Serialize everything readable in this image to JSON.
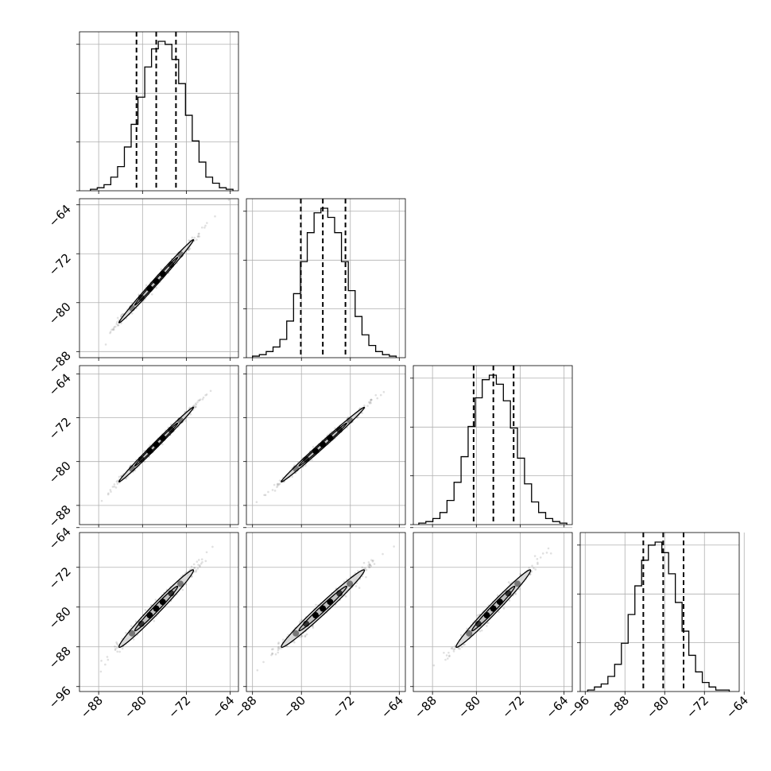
{
  "chart_data": {
    "type": "corner",
    "title": "",
    "parameters": 4,
    "axes": {
      "x_tick_labels": [
        [
          "−88",
          "−80",
          "−72",
          "−64"
        ],
        [
          "−88",
          "−80",
          "−72",
          "−64"
        ],
        [
          "−88",
          "−80",
          "−72",
          "−64"
        ],
        [
          "−96",
          "−88",
          "−80",
          "−72",
          "−64"
        ]
      ],
      "y_tick_labels": [
        [],
        [
          "−64",
          "−72",
          "−80",
          "−88"
        ],
        [
          "−64",
          "−72",
          "−80",
          "−88"
        ],
        [
          "−64",
          "−72",
          "−80",
          "−88",
          "−96"
        ]
      ],
      "ranges": [
        [
          -91.5,
          -62.5
        ],
        [
          -89,
          -63
        ],
        [
          -91.5,
          -62.5
        ],
        [
          -97,
          -65
        ]
      ],
      "grid": true
    },
    "marginals": [
      {
        "param": 0,
        "bin_edges_range": [
          -89.5,
          -63.5
        ],
        "counts": [
          1,
          2,
          4,
          9,
          16,
          29,
          44,
          62,
          82,
          94,
          99,
          97,
          87,
          71,
          50,
          33,
          19,
          9,
          5,
          2,
          1
        ],
        "quantiles": [
          -81.1,
          -77.5,
          -73.9
        ]
      },
      {
        "param": 1,
        "bin_edges_range": [
          -88,
          -64.5
        ],
        "counts": [
          1,
          2,
          4,
          7,
          12,
          24,
          42,
          63,
          82,
          95,
          98,
          92,
          82,
          63,
          44,
          27,
          15,
          8,
          4,
          2,
          1
        ],
        "quantiles": [
          -80.1,
          -76.5,
          -72.8
        ]
      },
      {
        "param": 2,
        "bin_edges_range": [
          -90.5,
          -63.5
        ],
        "counts": [
          1,
          2,
          4,
          8,
          16,
          28,
          45,
          65,
          84,
          96,
          99,
          93,
          82,
          64,
          44,
          27,
          15,
          8,
          4,
          2,
          1
        ],
        "quantiles": [
          -80.5,
          -76.9,
          -73.2
        ]
      },
      {
        "param": 3,
        "bin_edges_range": [
          -95.5,
          -67
        ],
        "counts": [
          1,
          3,
          5,
          10,
          18,
          32,
          51,
          70,
          87,
          97,
          99,
          92,
          78,
          59,
          40,
          24,
          13,
          6,
          3,
          1,
          1
        ],
        "quantiles": [
          -84.3,
          -80.3,
          -76.2
        ]
      }
    ],
    "pairs": [
      {
        "x_param": 0,
        "y_param": 1,
        "center": [
          -77.5,
          -76.5
        ],
        "sd": [
          3.4,
          3.4
        ],
        "corr": 0.995
      },
      {
        "x_param": 0,
        "y_param": 2,
        "center": [
          -77.5,
          -76.9
        ],
        "sd": [
          3.4,
          3.4
        ],
        "corr": 0.995
      },
      {
        "x_param": 1,
        "y_param": 2,
        "center": [
          -76.5,
          -76.9
        ],
        "sd": [
          3.4,
          3.4
        ],
        "corr": 0.995
      },
      {
        "x_param": 0,
        "y_param": 3,
        "center": [
          -77.5,
          -80.3
        ],
        "sd": [
          3.4,
          3.9
        ],
        "corr": 0.985
      },
      {
        "x_param": 1,
        "y_param": 3,
        "center": [
          -76.5,
          -80.3
        ],
        "sd": [
          3.4,
          3.9
        ],
        "corr": 0.985
      },
      {
        "x_param": 2,
        "y_param": 3,
        "center": [
          -76.9,
          -80.3
        ],
        "sd": [
          3.4,
          3.9
        ],
        "corr": 0.985
      }
    ],
    "colors": {
      "line": "#000000",
      "grid": "#b0b0b0",
      "fill": "#d9d9d9",
      "points": "#555555"
    }
  }
}
